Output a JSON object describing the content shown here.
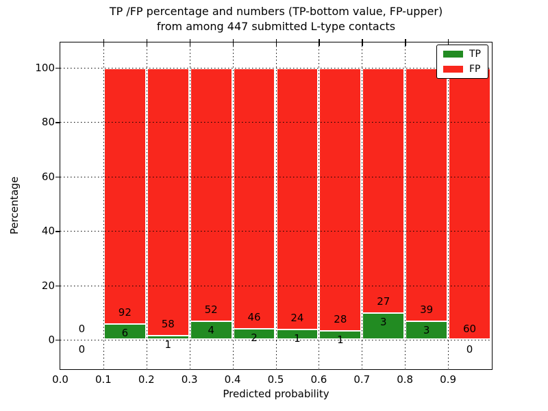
{
  "figure": {
    "title_line1": "TP /FP percentage and numbers (TP-bottom value, FP-upper)",
    "title_line2": "from among 447 submitted L-type contacts",
    "xlabel": "Predicted probability",
    "ylabel": "Percentage",
    "total_contacts": 447
  },
  "legend": {
    "items": [
      {
        "label": "TP",
        "color": "#228b22"
      },
      {
        "label": "FP",
        "color": "#f9271d"
      }
    ]
  },
  "chart_data": {
    "type": "bar",
    "stacked": true,
    "normalized": "each bin scaled to 100%, count labels shown",
    "title": "TP /FP percentage and numbers (TP-bottom value, FP-upper) from among 447 submitted L-type contacts",
    "xlabel": "Predicted probability",
    "ylabel": "Percentage",
    "xlim": [
      0.0,
      1.0
    ],
    "ylim": [
      -11,
      110
    ],
    "grid": true,
    "legend_position": "upper right",
    "bin_edges": [
      0.0,
      0.1,
      0.2,
      0.3,
      0.4,
      0.5,
      0.6,
      0.7,
      0.8,
      0.9,
      1.0
    ],
    "x_ticks": [
      {
        "label": "0.0",
        "value": 0.0
      },
      {
        "label": "0.1",
        "value": 0.1
      },
      {
        "label": "0.2",
        "value": 0.2
      },
      {
        "label": "0.3",
        "value": 0.3
      },
      {
        "label": "0.4",
        "value": 0.4
      },
      {
        "label": "0.5",
        "value": 0.5
      },
      {
        "label": "0.6",
        "value": 0.6
      },
      {
        "label": "0.7",
        "value": 0.7
      },
      {
        "label": "0.8",
        "value": 0.8
      },
      {
        "label": "0.9",
        "value": 0.9
      }
    ],
    "y_ticks": [
      0,
      20,
      40,
      60,
      80,
      100
    ],
    "series": [
      {
        "name": "TP",
        "color": "#228b22",
        "position": "bottom",
        "counts": [
          0,
          6,
          1,
          4,
          2,
          1,
          1,
          3,
          3,
          0
        ]
      },
      {
        "name": "FP",
        "color": "#f9271d",
        "position": "top",
        "counts": [
          0,
          92,
          58,
          52,
          46,
          24,
          28,
          27,
          39,
          60
        ]
      }
    ]
  }
}
